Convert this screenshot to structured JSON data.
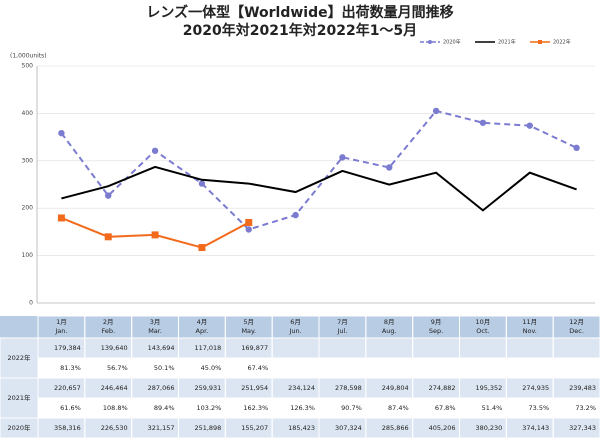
{
  "chart_data": {
    "type": "line",
    "title": "レンズ一体型【Worldwide】出荷数量月間推移",
    "subtitle": "2020年対2021年対2022年1～5月",
    "ylabel": "(1,000units)",
    "ylim": [
      0,
      500
    ],
    "yticks": [
      0,
      100,
      200,
      300,
      400,
      500
    ],
    "grid": true,
    "series": [
      {
        "name": "2020年",
        "color": "#7b7bd0",
        "dash": true,
        "marker": "circle",
        "values": [
          358.316,
          226.53,
          321.157,
          251.898,
          155.207,
          185.423,
          307.324,
          285.866,
          405.206,
          380.23,
          374.143,
          327.343
        ]
      },
      {
        "name": "2021年",
        "color": "#000000",
        "dash": false,
        "marker": "none",
        "values": [
          220.657,
          246.464,
          287.066,
          259.931,
          251.954,
          234.124,
          278.598,
          249.804,
          274.882,
          195.352,
          274.935,
          239.483
        ]
      },
      {
        "name": "2022年",
        "color": "#f26b1d",
        "dash": false,
        "marker": "square",
        "values": [
          179.384,
          139.64,
          143.694,
          117.018,
          169.877,
          null,
          null,
          null,
          null,
          null,
          null,
          null
        ]
      }
    ]
  },
  "table": {
    "header": [
      [
        "1月",
        "Jan."
      ],
      [
        "2月",
        "Feb."
      ],
      [
        "3月",
        "Mar."
      ],
      [
        "4月",
        "Apr."
      ],
      [
        "5月",
        "May."
      ],
      [
        "6月",
        "Jun."
      ],
      [
        "7月",
        "Jul."
      ],
      [
        "8月",
        "Aug."
      ],
      [
        "9月",
        "Sep."
      ],
      [
        "10月",
        "Oct."
      ],
      [
        "11月",
        "Nov."
      ],
      [
        "12月",
        "Dec."
      ]
    ],
    "rows": [
      {
        "label": "2022年",
        "lines": [
          [
            "179,384",
            "139,640",
            "143,694",
            "117,018",
            "169,877"
          ],
          [
            "81.3%",
            "56.7%",
            "50.1%",
            "45.0%",
            "67.4%"
          ]
        ]
      },
      {
        "label": "2021年",
        "lines": [
          [
            "220,657",
            "246,464",
            "287,066",
            "259,931",
            "251,954",
            "234,124",
            "278,598",
            "249,804",
            "274,882",
            "195,352",
            "274,935",
            "239,483"
          ],
          [
            "61.6%",
            "108.8%",
            "89.4%",
            "103.2%",
            "162.3%",
            "126.3%",
            "90.7%",
            "87.4%",
            "67.8%",
            "51.4%",
            "73.5%",
            "73.2%"
          ]
        ]
      },
      {
        "label": "2020年",
        "lines": [
          [
            "358,316",
            "226,530",
            "321,157",
            "251,898",
            "155,207",
            "185,423",
            "307,324",
            "285,866",
            "405,206",
            "380,230",
            "374,143",
            "327,343"
          ]
        ]
      }
    ]
  }
}
